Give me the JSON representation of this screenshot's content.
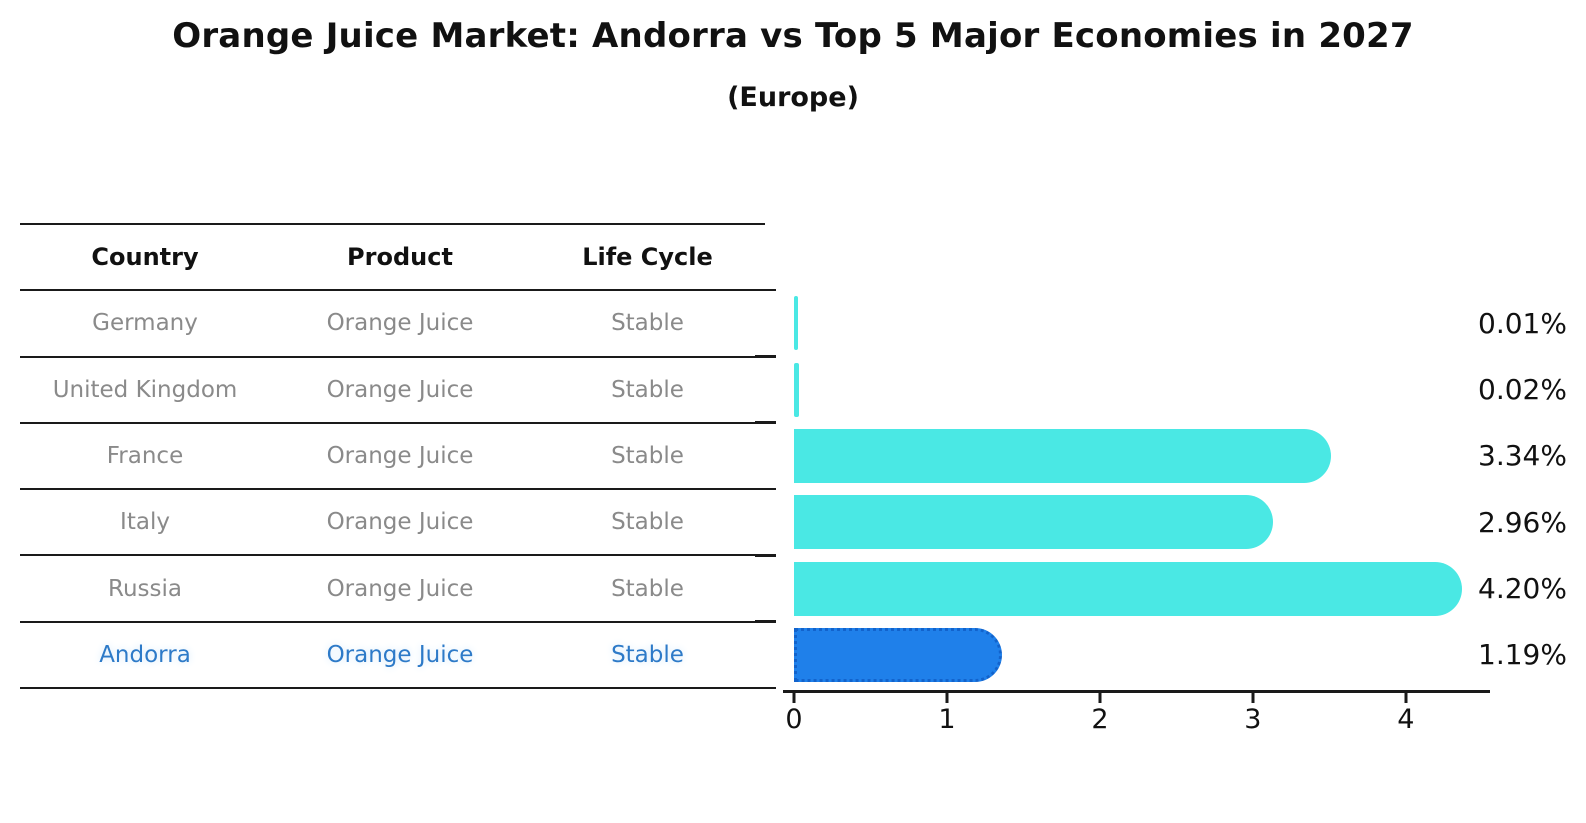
{
  "title": "Orange Juice Market: Andorra vs Top 5 Major Economies in 2027",
  "subtitle": "(Europe)",
  "table": {
    "headers": [
      "Country",
      "Product",
      "Life Cycle"
    ],
    "rows": [
      {
        "country": "Germany",
        "product": "Orange Juice",
        "life_cycle": "Stable",
        "highlight": false
      },
      {
        "country": "United Kingdom",
        "product": "Orange Juice",
        "life_cycle": "Stable",
        "highlight": false
      },
      {
        "country": "France",
        "product": "Orange Juice",
        "life_cycle": "Stable",
        "highlight": false
      },
      {
        "country": "Italy",
        "product": "Orange Juice",
        "life_cycle": "Stable",
        "highlight": false
      },
      {
        "country": "Russia",
        "product": "Orange Juice",
        "life_cycle": "Stable",
        "highlight": false
      },
      {
        "country": "Andorra",
        "product": "Orange Juice",
        "life_cycle": "Stable",
        "highlight": true
      }
    ]
  },
  "chart_data": {
    "type": "bar",
    "orientation": "horizontal",
    "categories": [
      "Germany",
      "United Kingdom",
      "France",
      "Italy",
      "Russia",
      "Andorra"
    ],
    "values": [
      0.01,
      0.02,
      3.34,
      2.96,
      4.2,
      1.19
    ],
    "value_labels": [
      "0.01%",
      "0.02%",
      "3.34%",
      "2.96%",
      "4.20%",
      "1.19%"
    ],
    "x_ticks": [
      0,
      1,
      2,
      3,
      4
    ],
    "xlim": [
      0,
      4.55
    ],
    "title": "Orange Juice Market: Andorra vs Top 5 Major Economies in 2027",
    "subtitle": "(Europe)",
    "xlabel": "",
    "ylabel": "",
    "grid": false,
    "legend": false,
    "bar_color": "#4ae8e4",
    "highlight_bar_color": "#1f80ea",
    "highlight_border_color": "#1263cc",
    "highlight_index": 5
  },
  "colors": {
    "text_primary": "#111111",
    "text_muted": "#8a8a8a",
    "highlight_text": "#2d7ac8",
    "line": "#1a1a1a"
  }
}
